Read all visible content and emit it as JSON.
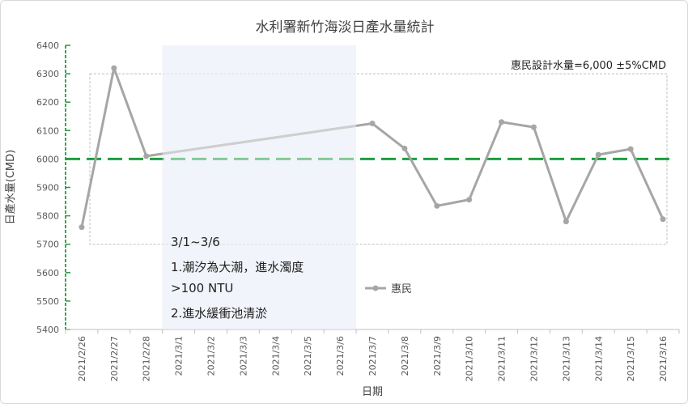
{
  "chart_data": {
    "type": "line",
    "title": "水利署新竹海淡日產水量統計",
    "xlabel": "日期",
    "ylabel": "日產水量(CMD)",
    "ylim": [
      5400,
      6400
    ],
    "y_ticks": [
      5400,
      5500,
      5600,
      5700,
      5800,
      5900,
      6000,
      6100,
      6200,
      6300,
      6400
    ],
    "categories": [
      "2021/2/26",
      "2021/2/27",
      "2021/2/28",
      "2021/3/1",
      "2021/3/2",
      "2021/3/3",
      "2021/3/4",
      "2021/3/5",
      "2021/3/6",
      "2021/3/7",
      "2021/3/8",
      "2021/3/9",
      "2021/3/10",
      "2021/3/11",
      "2021/3/12",
      "2021/3/13",
      "2021/3/14",
      "2021/3/15",
      "2021/3/16"
    ],
    "series": [
      {
        "name": "惠民",
        "color": "#a6a6a6",
        "values": [
          5760,
          6320,
          6010,
          null,
          null,
          null,
          null,
          null,
          null,
          6125,
          6037,
          5835,
          5857,
          6130,
          6112,
          5780,
          6015,
          6035,
          5788
        ]
      }
    ],
    "design_line": {
      "value": 6000,
      "color": "#1e9e3e"
    },
    "tolerance_band": {
      "low": 5700,
      "high": 6300,
      "label": "惠民設計水量=6,000 ±5%CMD"
    },
    "highlight": {
      "from": "2021/3/1",
      "to": "2021/3/6",
      "color": "#e7ecf7",
      "note_lines": [
        "3/1~3/6",
        "1.潮汐為大潮，進水濁度",
        ">100 NTU",
        "2.進水緩衝池清淤"
      ]
    },
    "legend": {
      "position": "center",
      "label": "惠民"
    }
  }
}
